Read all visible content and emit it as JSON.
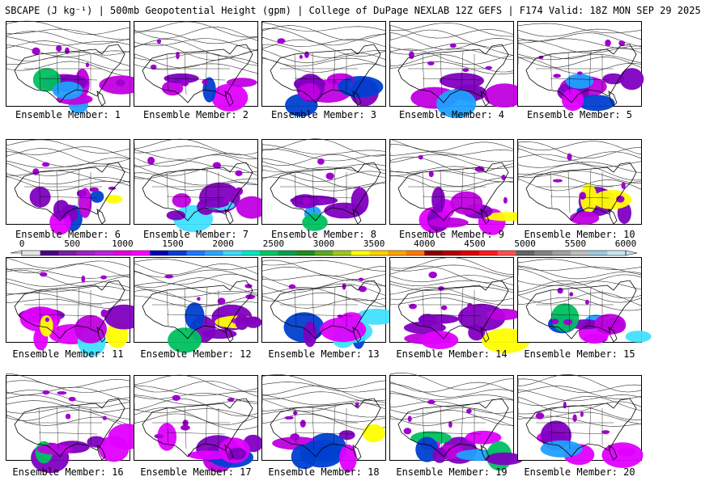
{
  "title": "SBCAPE (J kg⁻¹) | 500mb Geopotential Height (gpm) | College of DuPage NEXLAB 12Z GEFS | F174 Valid: 18Z MON SEP 29 2025",
  "members": [
    "Ensemble Member: 1",
    "Ensemble Member: 2",
    "Ensemble Member: 3",
    "Ensemble Member: 4",
    "Ensemble Member: 5",
    "Ensemble Member: 6",
    "Ensemble Member: 7",
    "Ensemble Member: 8",
    "Ensemble Member: 9",
    "Ensemble Member: 10",
    "Ensemble Member: 11",
    "Ensemble Member: 12",
    "Ensemble Member: 13",
    "Ensemble Member: 14",
    "Ensemble Member: 15",
    "Ensemble Member: 16",
    "Ensemble Member: 17",
    "Ensemble Member: 18",
    "Ensemble Member: 19",
    "Ensemble Member: 20"
  ],
  "colorbar": {
    "labels": [
      "0",
      "500",
      "1000",
      "1500",
      "2000",
      "2500",
      "3000",
      "3500",
      "4000",
      "4500",
      "5000",
      "5500",
      "6000"
    ],
    "colors": [
      "#e6e6e6",
      "#4b0082",
      "#7a1fa2",
      "#a020c8",
      "#c020e0",
      "#e000e0",
      "#ff00ff",
      "#0000b4",
      "#0a3cd2",
      "#1e78ff",
      "#2aa6ff",
      "#40d8ff",
      "#00e6c8",
      "#00c864",
      "#00a050",
      "#1e8c1e",
      "#5aaa1e",
      "#a0c81e",
      "#ffff00",
      "#ffd200",
      "#ffa500",
      "#ff7800",
      "#8b0000",
      "#b40000",
      "#dc0000",
      "#ff1e1e",
      "#ff5050",
      "#646464",
      "#828282",
      "#a0a0a0",
      "#bebebe",
      "#a0c8dc",
      "#c8e6f0"
    ]
  }
}
